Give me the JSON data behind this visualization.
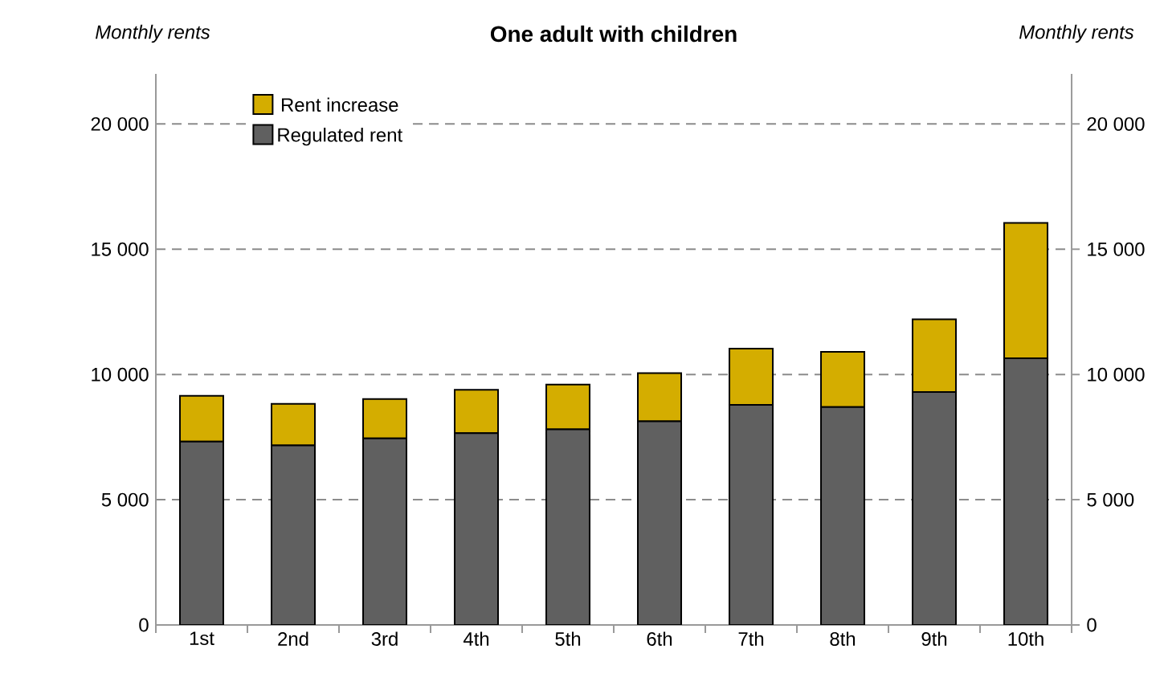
{
  "chart_data": {
    "type": "bar",
    "title": "One adult with children",
    "ylabel": "Monthly rents",
    "y2label": "Monthly rents",
    "categories": [
      "1st",
      "2nd",
      "3rd",
      "4th",
      "5th",
      "6th",
      "7th",
      "8th",
      "9th",
      "10th"
    ],
    "stacked": true,
    "series": [
      {
        "name": "Regulated rent",
        "color": "#606060",
        "values": [
          7320,
          7170,
          7450,
          7660,
          7810,
          8130,
          8790,
          8700,
          9300,
          10650
        ]
      },
      {
        "name": "Rent increase",
        "color": "#d4ad00",
        "values": [
          1830,
          1660,
          1570,
          1730,
          1790,
          1920,
          2240,
          2200,
          2900,
          5400
        ]
      }
    ],
    "ylim": [
      0,
      22000
    ],
    "yticks": [
      {
        "value": 0,
        "label": "0"
      },
      {
        "value": 5000,
        "label": "5 000"
      },
      {
        "value": 10000,
        "label": "10 000"
      },
      {
        "value": 15000,
        "label": "15 000"
      },
      {
        "value": 20000,
        "label": "20 000"
      }
    ],
    "y2lim": [
      0,
      22000
    ],
    "y2ticks": [
      {
        "value": 0,
        "label": "0"
      },
      {
        "value": 5000,
        "label": "5 000"
      },
      {
        "value": 10000,
        "label": "10 000"
      },
      {
        "value": 15000,
        "label": "15 000"
      },
      {
        "value": 20000,
        "label": "20 000"
      }
    ],
    "grid": "y",
    "legend": "top left"
  }
}
